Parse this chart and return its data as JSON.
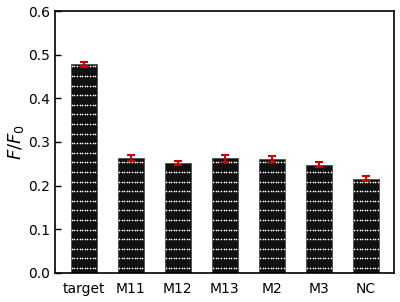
{
  "categories": [
    "target",
    "M11",
    "M12",
    "M13",
    "M2",
    "M3",
    "NC"
  ],
  "values": [
    0.478,
    0.264,
    0.252,
    0.262,
    0.26,
    0.248,
    0.216
  ],
  "errors": [
    0.006,
    0.007,
    0.005,
    0.007,
    0.007,
    0.005,
    0.006
  ],
  "bar_color": "#111111",
  "dot_color": "#ffffff",
  "error_color": "#cc0000",
  "ylabel": "$F/F_0$",
  "ylim": [
    0.0,
    0.6
  ],
  "yticks": [
    0.0,
    0.1,
    0.2,
    0.3,
    0.4,
    0.5,
    0.6
  ],
  "background_color": "#ffffff",
  "bar_width": 0.55,
  "figsize": [
    4.0,
    3.02
  ],
  "dpi": 100
}
